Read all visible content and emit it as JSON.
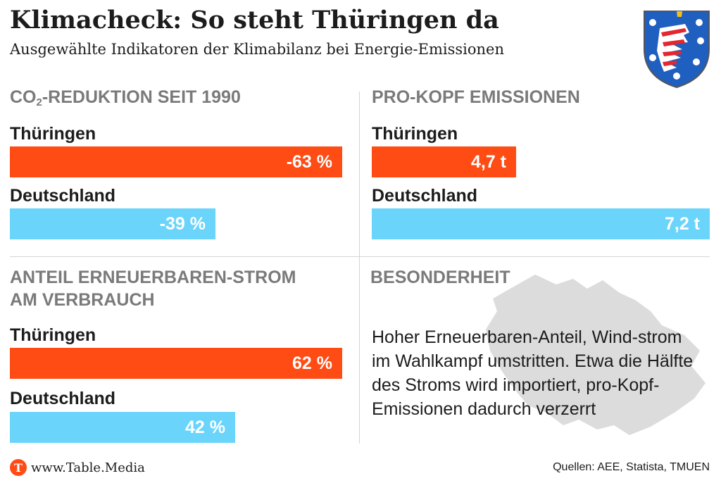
{
  "title": "Klimacheck: So steht Thüringen da",
  "subtitle": "Ausgewählte Indikatoren der Klimabilanz bei Energie-Emissionen",
  "colors": {
    "thueringen": "#ff4b14",
    "deutschland": "#6ad4fb"
  },
  "chart_data": [
    {
      "type": "bar",
      "title_pre": "CO",
      "title_sub": "2",
      "title_post": "-REDUKTION SEIT 1990",
      "categories": [
        "Thüringen",
        "Deutschland"
      ],
      "values": [
        -63,
        -39
      ],
      "labels": [
        "-63 %",
        "-39 %"
      ],
      "xlim": [
        0,
        -63
      ]
    },
    {
      "type": "bar",
      "title": "PRO-KOPF EMISSIONEN",
      "categories": [
        "Thüringen",
        "Deutschland"
      ],
      "values": [
        4.7,
        7.2
      ],
      "labels": [
        "4,7 t",
        "7,2 t"
      ],
      "xlim": [
        0,
        7.2
      ]
    },
    {
      "type": "bar",
      "title_line1": "ANTEIL ERNEUERBAREN-STROM",
      "title_line2": "AM VERBRAUCH",
      "categories": [
        "Thüringen",
        "Deutschland"
      ],
      "values": [
        62,
        42
      ],
      "labels": [
        "62 %",
        "42 %"
      ],
      "xlim": [
        0,
        63
      ]
    }
  ],
  "besonderheit": {
    "title": "BESONDERHEIT",
    "text": "Hoher Erneuerbaren-Anteil, Wind-strom im Wahlkampf umstritten. Etwa die Hälfte des Stroms wird importiert, pro-Kopf-Emissionen dadurch verzerrt"
  },
  "footer": {
    "logo_letter": "T",
    "site": "www.Table.Media",
    "sources": "Quellen: AEE, Statista, TMUEN"
  }
}
